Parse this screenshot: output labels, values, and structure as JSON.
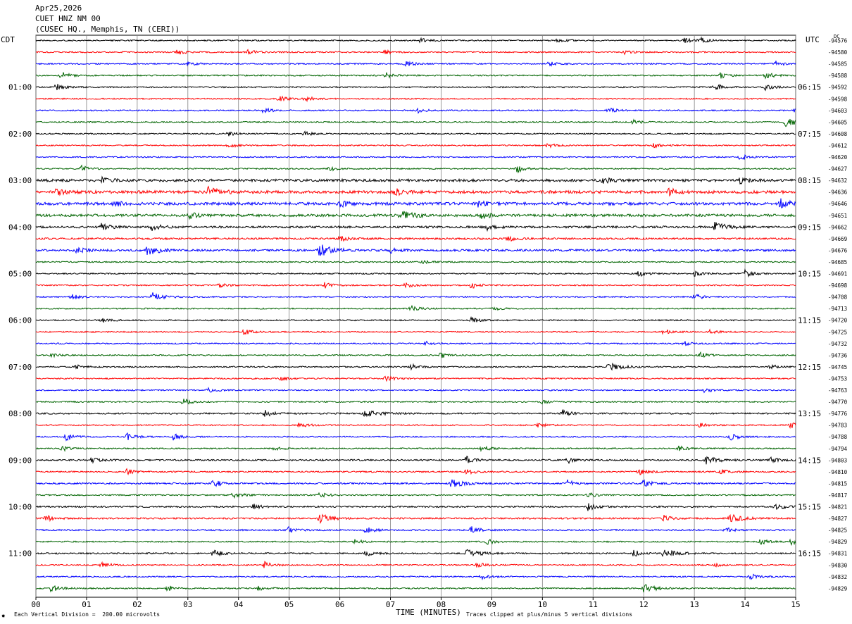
{
  "header": {
    "date": "Apr25,2026",
    "station": "CUET HNZ NM 00",
    "location": "(CUSEC HQ., Memphis, TN (CERI))"
  },
  "left_tz": "CDT",
  "right_tz": "UTC",
  "right_unit": "DC",
  "footer": {
    "scale_note": "Each Vertical Division =  200.00 microvolts",
    "clip_note": "Traces clipped at plus/minus 5 vertical divisions",
    "corner_mark": "✸"
  },
  "colors": {
    "black": "#000000",
    "red": "#ff0000",
    "blue": "#0000ff",
    "green": "#006400",
    "grid": "#808080"
  },
  "chart_data": {
    "type": "line",
    "title": "CUET HNZ NM 00",
    "xlabel": "TIME (MINUTES)",
    "ylabel": "",
    "xlim": [
      0,
      15
    ],
    "x_ticks": [
      "00",
      "01",
      "02",
      "03",
      "04",
      "05",
      "06",
      "07",
      "08",
      "09",
      "10",
      "11",
      "12",
      "13",
      "14",
      "15"
    ],
    "trace_colors_cycle": [
      "black",
      "red",
      "blue",
      "green"
    ],
    "left_hour_labels": [
      "01:00",
      "02:00",
      "03:00",
      "04:00",
      "05:00",
      "06:00",
      "07:00",
      "08:00",
      "09:00",
      "10:00",
      "11:00"
    ],
    "right_hour_labels": [
      "06:15",
      "07:15",
      "08:15",
      "09:15",
      "10:15",
      "11:15",
      "12:15",
      "13:15",
      "14:15",
      "15:15",
      "16:15"
    ],
    "dc_offsets": [
      "-94576",
      "-94580",
      "-94585",
      "-94588",
      "-94592",
      "-94598",
      "-94603",
      "-94605",
      "-94608",
      "-94612",
      "-94620",
      "-94627",
      "-94632",
      "-94636",
      "-94646",
      "-94651",
      "-94662",
      "-94669",
      "-94676",
      "-94685",
      "-94691",
      "-94698",
      "-94708",
      "-94713",
      "-94720",
      "-94725",
      "-94732",
      "-94736",
      "-94745",
      "-94753",
      "-94763",
      "-94770",
      "-94776",
      "-94783",
      "-94788",
      "-94794",
      "-94803",
      "-94810",
      "-94815",
      "-94817",
      "-94821",
      "-94827",
      "-94825",
      "-94829",
      "-94831",
      "-94830",
      "-94832",
      "-94829"
    ],
    "trace_activity": [
      1,
      1,
      1,
      1,
      1,
      1,
      1,
      1,
      1,
      1,
      1,
      1,
      2,
      2.2,
      2.2,
      2,
      1.6,
      1.4,
      1.6,
      1,
      1,
      1,
      1,
      1,
      1,
      1,
      1,
      1,
      1,
      1,
      1,
      1,
      1.2,
      1,
      1,
      1,
      1.2,
      1.1,
      1.2,
      1,
      1.2,
      1.2,
      1.1,
      1,
      1.1,
      1,
      1,
      1
    ],
    "events": [
      {
        "trace": 0,
        "minute": 7.6,
        "amp": 4
      },
      {
        "trace": 0,
        "minute": 10.3,
        "amp": 3
      },
      {
        "trace": 0,
        "minute": 12.8,
        "amp": 3
      },
      {
        "trace": 0,
        "minute": 13.1,
        "amp": 4
      },
      {
        "trace": 1,
        "minute": 2.8,
        "amp": 4
      },
      {
        "trace": 1,
        "minute": 4.2,
        "amp": 4
      },
      {
        "trace": 1,
        "minute": 6.9,
        "amp": 3
      },
      {
        "trace": 1,
        "minute": 11.6,
        "amp": 3
      },
      {
        "trace": 2,
        "minute": 3.0,
        "amp": 3
      },
      {
        "trace": 2,
        "minute": 7.3,
        "amp": 4
      },
      {
        "trace": 2,
        "minute": 10.1,
        "amp": 4
      },
      {
        "trace": 2,
        "minute": 14.6,
        "amp": 4
      },
      {
        "trace": 3,
        "minute": 0.5,
        "amp": 5
      },
      {
        "trace": 3,
        "minute": 6.9,
        "amp": 4
      },
      {
        "trace": 3,
        "minute": 13.5,
        "amp": 5
      },
      {
        "trace": 3,
        "minute": 14.4,
        "amp": 5
      },
      {
        "trace": 4,
        "minute": 0.4,
        "amp": 5
      },
      {
        "trace": 4,
        "minute": 13.4,
        "amp": 5
      },
      {
        "trace": 4,
        "minute": 14.4,
        "amp": 4
      },
      {
        "trace": 5,
        "minute": 4.8,
        "amp": 4
      },
      {
        "trace": 5,
        "minute": 5.3,
        "amp": 4
      },
      {
        "trace": 6,
        "minute": 4.5,
        "amp": 4
      },
      {
        "trace": 6,
        "minute": 7.5,
        "amp": 4
      },
      {
        "trace": 6,
        "minute": 11.3,
        "amp": 4
      },
      {
        "trace": 6,
        "minute": 15.0,
        "amp": 4
      },
      {
        "trace": 7,
        "minute": 11.8,
        "amp": 3
      },
      {
        "trace": 7,
        "minute": 14.8,
        "amp": 6
      },
      {
        "trace": 8,
        "minute": 3.8,
        "amp": 3
      },
      {
        "trace": 8,
        "minute": 5.3,
        "amp": 3
      },
      {
        "trace": 9,
        "minute": 3.8,
        "amp": 3
      },
      {
        "trace": 9,
        "minute": 10.1,
        "amp": 3
      },
      {
        "trace": 9,
        "minute": 12.2,
        "amp": 3
      },
      {
        "trace": 10,
        "minute": 13.9,
        "amp": 5
      },
      {
        "trace": 11,
        "minute": 0.9,
        "amp": 4
      },
      {
        "trace": 11,
        "minute": 5.8,
        "amp": 3
      },
      {
        "trace": 11,
        "minute": 9.5,
        "amp": 5
      },
      {
        "trace": 12,
        "minute": 1.3,
        "amp": 4
      },
      {
        "trace": 12,
        "minute": 11.2,
        "amp": 4
      },
      {
        "trace": 12,
        "minute": 13.9,
        "amp": 4
      },
      {
        "trace": 13,
        "minute": 0.4,
        "amp": 5
      },
      {
        "trace": 13,
        "minute": 3.4,
        "amp": 6
      },
      {
        "trace": 13,
        "minute": 7.1,
        "amp": 5
      },
      {
        "trace": 13,
        "minute": 12.5,
        "amp": 5
      },
      {
        "trace": 14,
        "minute": 1.5,
        "amp": 5
      },
      {
        "trace": 14,
        "minute": 6.0,
        "amp": 5
      },
      {
        "trace": 14,
        "minute": 8.7,
        "amp": 5
      },
      {
        "trace": 14,
        "minute": 14.7,
        "amp": 6
      },
      {
        "trace": 15,
        "minute": 3.0,
        "amp": 5
      },
      {
        "trace": 15,
        "minute": 7.2,
        "amp": 6
      },
      {
        "trace": 15,
        "minute": 8.8,
        "amp": 5
      },
      {
        "trace": 16,
        "minute": 1.3,
        "amp": 5
      },
      {
        "trace": 16,
        "minute": 2.3,
        "amp": 5
      },
      {
        "trace": 16,
        "minute": 8.9,
        "amp": 4
      },
      {
        "trace": 16,
        "minute": 13.4,
        "amp": 6
      },
      {
        "trace": 17,
        "minute": 6.0,
        "amp": 4
      },
      {
        "trace": 17,
        "minute": 9.3,
        "amp": 4
      },
      {
        "trace": 18,
        "minute": 0.8,
        "amp": 5
      },
      {
        "trace": 18,
        "minute": 2.2,
        "amp": 6
      },
      {
        "trace": 18,
        "minute": 5.6,
        "amp": 9
      },
      {
        "trace": 18,
        "minute": 7.0,
        "amp": 4
      },
      {
        "trace": 19,
        "minute": 7.6,
        "amp": 3
      },
      {
        "trace": 20,
        "minute": 11.9,
        "amp": 4
      },
      {
        "trace": 20,
        "minute": 13.0,
        "amp": 4
      },
      {
        "trace": 20,
        "minute": 14.0,
        "amp": 5
      },
      {
        "trace": 21,
        "minute": 3.6,
        "amp": 4
      },
      {
        "trace": 21,
        "minute": 5.7,
        "amp": 4
      },
      {
        "trace": 21,
        "minute": 7.3,
        "amp": 4
      },
      {
        "trace": 21,
        "minute": 8.6,
        "amp": 5
      },
      {
        "trace": 22,
        "minute": 0.7,
        "amp": 4
      },
      {
        "trace": 22,
        "minute": 2.3,
        "amp": 6
      },
      {
        "trace": 22,
        "minute": 13.0,
        "amp": 4
      },
      {
        "trace": 23,
        "minute": 7.4,
        "amp": 4
      },
      {
        "trace": 23,
        "minute": 9.0,
        "amp": 3
      },
      {
        "trace": 24,
        "minute": 1.3,
        "amp": 3
      },
      {
        "trace": 24,
        "minute": 8.6,
        "amp": 4
      },
      {
        "trace": 25,
        "minute": 4.1,
        "amp": 4
      },
      {
        "trace": 25,
        "minute": 12.4,
        "amp": 4
      },
      {
        "trace": 25,
        "minute": 13.3,
        "amp": 3
      },
      {
        "trace": 26,
        "minute": 7.7,
        "amp": 3
      },
      {
        "trace": 26,
        "minute": 12.8,
        "amp": 3
      },
      {
        "trace": 27,
        "minute": 0.3,
        "amp": 3
      },
      {
        "trace": 27,
        "minute": 8.0,
        "amp": 4
      },
      {
        "trace": 27,
        "minute": 13.1,
        "amp": 4
      },
      {
        "trace": 28,
        "minute": 0.8,
        "amp": 3
      },
      {
        "trace": 28,
        "minute": 7.4,
        "amp": 4
      },
      {
        "trace": 28,
        "minute": 11.3,
        "amp": 6
      },
      {
        "trace": 28,
        "minute": 14.5,
        "amp": 3
      },
      {
        "trace": 29,
        "minute": 4.8,
        "amp": 3
      },
      {
        "trace": 29,
        "minute": 6.9,
        "amp": 5
      },
      {
        "trace": 30,
        "minute": 3.4,
        "amp": 3
      },
      {
        "trace": 30,
        "minute": 13.2,
        "amp": 3
      },
      {
        "trace": 31,
        "minute": 2.9,
        "amp": 5
      },
      {
        "trace": 31,
        "minute": 10.0,
        "amp": 3
      },
      {
        "trace": 32,
        "minute": 4.5,
        "amp": 5
      },
      {
        "trace": 32,
        "minute": 6.5,
        "amp": 6
      },
      {
        "trace": 32,
        "minute": 10.4,
        "amp": 5
      },
      {
        "trace": 33,
        "minute": 5.2,
        "amp": 4
      },
      {
        "trace": 33,
        "minute": 9.9,
        "amp": 4
      },
      {
        "trace": 33,
        "minute": 13.1,
        "amp": 3
      },
      {
        "trace": 33,
        "minute": 14.9,
        "amp": 4
      },
      {
        "trace": 34,
        "minute": 0.6,
        "amp": 5
      },
      {
        "trace": 34,
        "minute": 1.8,
        "amp": 5
      },
      {
        "trace": 34,
        "minute": 2.7,
        "amp": 5
      },
      {
        "trace": 34,
        "minute": 13.7,
        "amp": 5
      },
      {
        "trace": 35,
        "minute": 0.5,
        "amp": 4
      },
      {
        "trace": 35,
        "minute": 4.7,
        "amp": 3
      },
      {
        "trace": 35,
        "minute": 8.8,
        "amp": 4
      },
      {
        "trace": 35,
        "minute": 12.7,
        "amp": 4
      },
      {
        "trace": 36,
        "minute": 1.1,
        "amp": 4
      },
      {
        "trace": 36,
        "minute": 8.5,
        "amp": 5
      },
      {
        "trace": 36,
        "minute": 10.5,
        "amp": 4
      },
      {
        "trace": 36,
        "minute": 13.2,
        "amp": 6
      },
      {
        "trace": 36,
        "minute": 14.5,
        "amp": 4
      },
      {
        "trace": 37,
        "minute": 1.8,
        "amp": 4
      },
      {
        "trace": 37,
        "minute": 8.5,
        "amp": 4
      },
      {
        "trace": 37,
        "minute": 11.9,
        "amp": 4
      },
      {
        "trace": 37,
        "minute": 13.5,
        "amp": 4
      },
      {
        "trace": 38,
        "minute": 3.5,
        "amp": 5
      },
      {
        "trace": 38,
        "minute": 8.2,
        "amp": 6
      },
      {
        "trace": 38,
        "minute": 10.5,
        "amp": 5
      },
      {
        "trace": 38,
        "minute": 12.0,
        "amp": 5
      },
      {
        "trace": 39,
        "minute": 3.9,
        "amp": 5
      },
      {
        "trace": 39,
        "minute": 5.6,
        "amp": 4
      },
      {
        "trace": 39,
        "minute": 10.9,
        "amp": 4
      },
      {
        "trace": 40,
        "minute": 4.3,
        "amp": 4
      },
      {
        "trace": 40,
        "minute": 10.9,
        "amp": 5
      },
      {
        "trace": 40,
        "minute": 14.6,
        "amp": 5
      },
      {
        "trace": 41,
        "minute": 0.2,
        "amp": 4
      },
      {
        "trace": 41,
        "minute": 5.6,
        "amp": 7
      },
      {
        "trace": 41,
        "minute": 12.4,
        "amp": 4
      },
      {
        "trace": 41,
        "minute": 13.7,
        "amp": 6
      },
      {
        "trace": 42,
        "minute": 5.0,
        "amp": 5
      },
      {
        "trace": 42,
        "minute": 6.5,
        "amp": 5
      },
      {
        "trace": 42,
        "minute": 8.6,
        "amp": 5
      },
      {
        "trace": 42,
        "minute": 13.6,
        "amp": 4
      },
      {
        "trace": 43,
        "minute": 6.3,
        "amp": 3
      },
      {
        "trace": 43,
        "minute": 8.9,
        "amp": 4
      },
      {
        "trace": 43,
        "minute": 14.3,
        "amp": 4
      },
      {
        "trace": 43,
        "minute": 14.9,
        "amp": 4
      },
      {
        "trace": 44,
        "minute": 3.5,
        "amp": 5
      },
      {
        "trace": 44,
        "minute": 6.5,
        "amp": 5
      },
      {
        "trace": 44,
        "minute": 8.5,
        "amp": 6
      },
      {
        "trace": 44,
        "minute": 11.8,
        "amp": 5
      },
      {
        "trace": 44,
        "minute": 12.4,
        "amp": 6
      },
      {
        "trace": 45,
        "minute": 1.3,
        "amp": 4
      },
      {
        "trace": 45,
        "minute": 4.5,
        "amp": 5
      },
      {
        "trace": 45,
        "minute": 8.7,
        "amp": 4
      },
      {
        "trace": 45,
        "minute": 13.4,
        "amp": 3
      },
      {
        "trace": 46,
        "minute": 8.8,
        "amp": 4
      },
      {
        "trace": 46,
        "minute": 14.1,
        "amp": 4
      },
      {
        "trace": 47,
        "minute": 0.3,
        "amp": 5
      },
      {
        "trace": 47,
        "minute": 2.6,
        "amp": 4
      },
      {
        "trace": 47,
        "minute": 4.4,
        "amp": 4
      },
      {
        "trace": 47,
        "minute": 12.0,
        "amp": 6
      }
    ]
  }
}
